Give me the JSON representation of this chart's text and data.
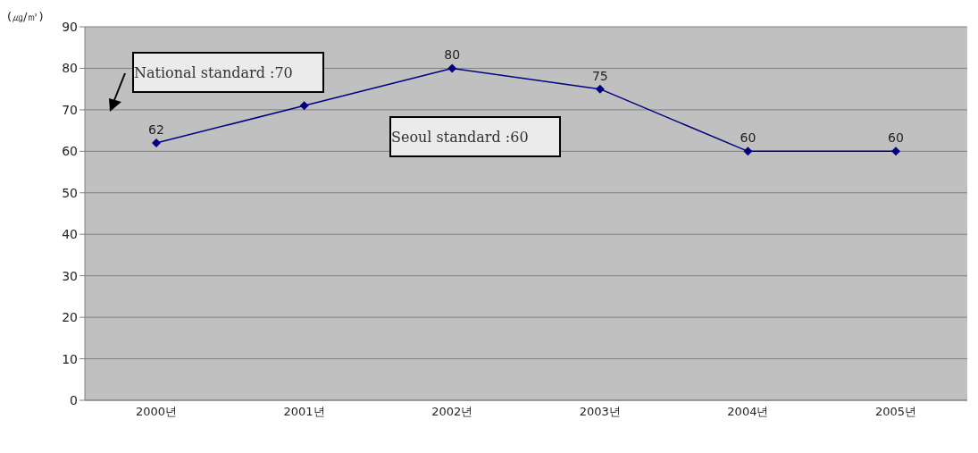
{
  "chart_data": {
    "type": "line",
    "ylabel": "(㎍/㎥)",
    "categories": [
      "2000년",
      "2001년",
      "2002년",
      "2003년",
      "2004년",
      "2005년"
    ],
    "series": [
      {
        "color": "#000080",
        "values": [
          62,
          71,
          80,
          75,
          60,
          60
        ],
        "value_labels": [
          "62",
          null,
          "80",
          "75",
          "60",
          "60"
        ]
      }
    ],
    "ylim": [
      0,
      90
    ],
    "yticks": [
      0,
      10,
      20,
      30,
      40,
      50,
      60,
      70,
      80,
      90
    ],
    "grid": "y",
    "marker": "diamond",
    "line_style": "solid",
    "annotations": [
      "National standard :70",
      "Seoul standard :60"
    ]
  }
}
